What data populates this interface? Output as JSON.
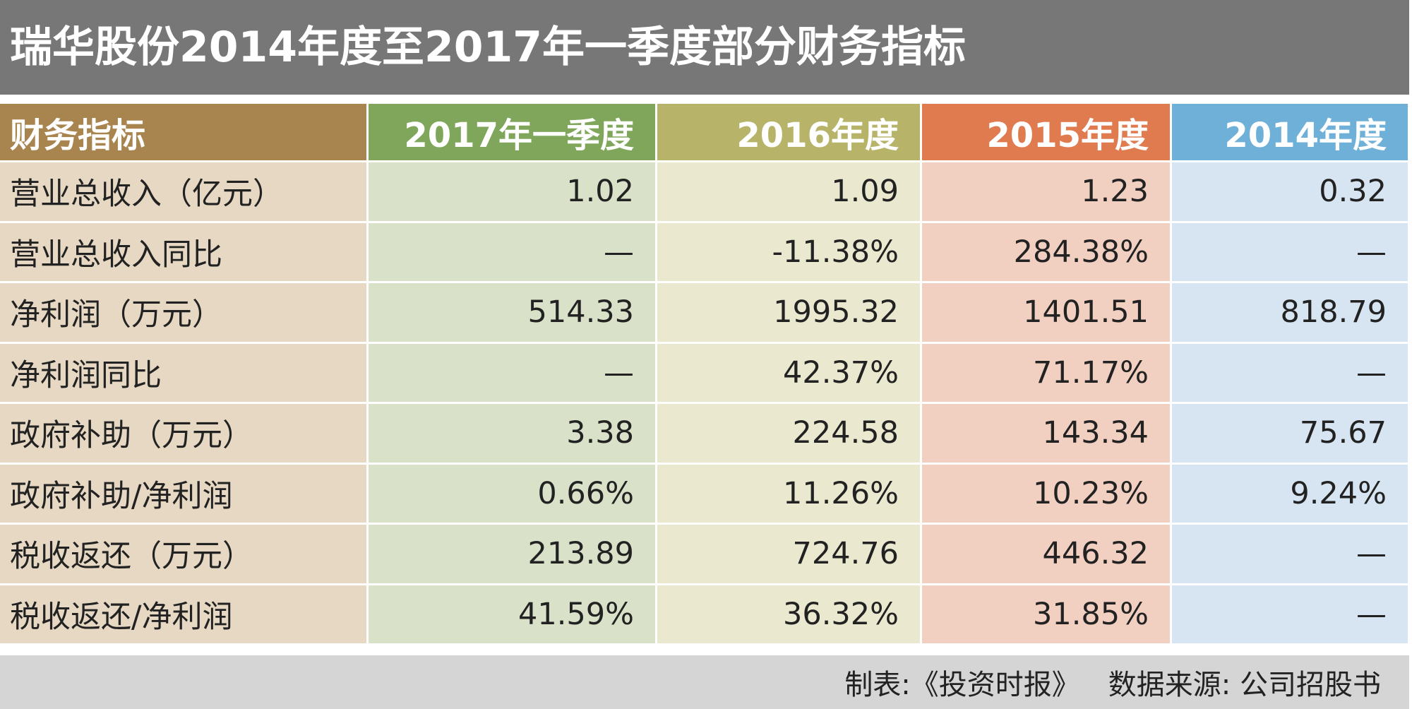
{
  "header": {
    "title": "瑞华股份2014年度至2017年一季度部分财务指标"
  },
  "table": {
    "columns": [
      "财务指标",
      "2017年一季度",
      "2016年度",
      "2015年度",
      "2014年度"
    ],
    "rows": [
      [
        "营业总收入（亿元）",
        "1.02",
        "1.09",
        "1.23",
        "0.32"
      ],
      [
        "营业总收入同比",
        "—",
        "-11.38%",
        "284.38%",
        "—"
      ],
      [
        "净利润（万元）",
        "514.33",
        "1995.32",
        "1401.51",
        "818.79"
      ],
      [
        "净利润同比",
        "—",
        "42.37%",
        "71.17%",
        "—"
      ],
      [
        "政府补助（万元）",
        "3.38",
        "224.58",
        "143.34",
        "75.67"
      ],
      [
        "政府补助/净利润",
        "0.66%",
        "11.26%",
        "10.23%",
        "9.24%"
      ],
      [
        "税收返还（万元）",
        "213.89",
        "724.76",
        "446.32",
        "—"
      ],
      [
        "税收返还/净利润",
        "41.59%",
        "36.32%",
        "31.85%",
        "—"
      ]
    ]
  },
  "footer": {
    "maker": "制表:《投资时报》",
    "source": "数据来源: 公司招股书"
  }
}
